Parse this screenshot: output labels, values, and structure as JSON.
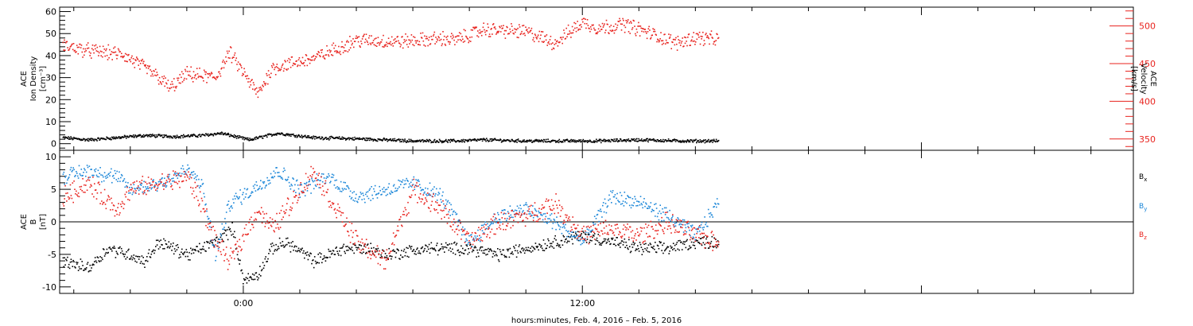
{
  "colors": {
    "axis": "#000000",
    "density": "#000000",
    "velocity": "#e8231e",
    "bx": "#000000",
    "by": "#1a86d8",
    "bz": "#e8231e"
  },
  "xaxis": {
    "label": "hours:minutes, Feb.  4, 2016 – Feb.  5, 2016",
    "range_hours": [
      -6.5,
      31.5
    ],
    "ticks": [
      {
        "value": 0,
        "label": "0:00"
      },
      {
        "value": 12,
        "label": "12:00"
      }
    ]
  },
  "chart_data": [
    {
      "type": "scatter",
      "panel": "top",
      "ylabel_left": [
        "ACE",
        "Ion Density",
        "[cm⁻³]"
      ],
      "ylabel_right": [
        "ACE",
        "Velocity",
        "[km/s]"
      ],
      "yaxis_left": {
        "range": [
          -3,
          62
        ],
        "ticks": [
          0,
          10,
          20,
          30,
          40,
          50,
          60
        ]
      },
      "yaxis_right": {
        "range": [
          335,
          525
        ],
        "ticks": [
          350,
          400,
          450,
          500
        ]
      },
      "series": [
        {
          "key": "density",
          "axis": "left",
          "noise": 0.6,
          "x": [
            -6.4,
            -5.5,
            -4.5,
            -3.5,
            -2.5,
            -1.5,
            -0.8,
            0.2,
            1.2,
            2.5,
            4,
            5,
            6,
            7.5,
            8.5,
            10,
            11.5,
            12.5,
            14,
            15.5,
            16.8
          ],
          "y": [
            3,
            2,
            3,
            4,
            3.5,
            4,
            5,
            2,
            5,
            3,
            2.5,
            2,
            1.5,
            1.5,
            2,
            1.5,
            1.5,
            1.5,
            2,
            1.5,
            1.5
          ]
        },
        {
          "key": "velocity",
          "axis": "right",
          "noise": 8,
          "x": [
            -6.4,
            -5.5,
            -4.3,
            -3.5,
            -3.0,
            -2.6,
            -2.0,
            -1.0,
            -0.5,
            0.5,
            1.0,
            2.5,
            4.0,
            5.5,
            7.0,
            7.5,
            8.5,
            10.0,
            11.0,
            12.0,
            12.5,
            13.5,
            14.3,
            15.3,
            16.0,
            16.8
          ],
          "y": [
            475,
            468,
            463,
            445,
            432,
            418,
            437,
            432,
            465,
            410,
            445,
            458,
            482,
            480,
            484,
            482,
            496,
            493,
            478,
            506,
            498,
            503,
            492,
            478,
            486,
            482
          ]
        }
      ]
    },
    {
      "type": "scatter",
      "panel": "bottom",
      "ylabel_left": [
        "ACE",
        "B",
        "[nT]"
      ],
      "yaxis_left": {
        "range": [
          -11,
          11
        ],
        "ticks": [
          -10,
          -5,
          0,
          5,
          10
        ]
      },
      "zero_line": true,
      "series": [
        {
          "key": "bx",
          "name": "B",
          "subscript": "x",
          "noise": 0.8,
          "x": [
            -6.4,
            -5.5,
            -4.8,
            -4.0,
            -3.5,
            -3.0,
            -2.0,
            -1.0,
            -0.4,
            0,
            0.5,
            1.0,
            1.5,
            2.5,
            3.5,
            4.5,
            5.0,
            6.5,
            8.0,
            9.0,
            10.0,
            11.0,
            12.0,
            13.0,
            14.0,
            15.0,
            16.0,
            16.8
          ],
          "y": [
            -6,
            -7,
            -4,
            -5,
            -6,
            -3,
            -5,
            -3,
            -1,
            -9,
            -8,
            -4,
            -3,
            -6,
            -4,
            -4,
            -5,
            -4,
            -4,
            -5,
            -4,
            -3,
            -2,
            -3,
            -4,
            -4,
            -3,
            -3
          ]
        },
        {
          "key": "by",
          "name": "B",
          "subscript": "y",
          "noise": 1.0,
          "x": [
            -6.4,
            -5.5,
            -4.5,
            -4.0,
            -3.0,
            -2.0,
            -1.5,
            -1.0,
            -0.5,
            0.3,
            1.2,
            2.0,
            3.0,
            4.0,
            5.0,
            6.0,
            7.0,
            8.0,
            9.0,
            10.0,
            11.0,
            12.0,
            13.0,
            14.0,
            15.0,
            16.0,
            16.8
          ],
          "y": [
            7,
            8,
            7,
            5,
            6,
            8,
            6,
            -5,
            3,
            5,
            8,
            5,
            7,
            4,
            5,
            6,
            4,
            -3,
            1,
            2,
            0,
            -3,
            4,
            3,
            1,
            -2,
            3
          ]
        },
        {
          "key": "bz",
          "name": "B",
          "subscript": "z",
          "noise": 1.3,
          "x": [
            -6.4,
            -5.5,
            -4.5,
            -4.0,
            -3.0,
            -2.0,
            -1.5,
            -1.0,
            -0.5,
            0.5,
            1.0,
            2.0,
            2.5,
            3.0,
            4.0,
            5.0,
            6.0,
            7.0,
            8.0,
            9.0,
            10.0,
            11.0,
            12.0,
            13.0,
            14.0,
            15.0,
            16.0,
            16.8
          ],
          "y": [
            4,
            6,
            2,
            5,
            6,
            7,
            3,
            -3,
            -6,
            2,
            -1,
            5,
            8,
            4,
            -3,
            -6,
            5,
            2,
            -3,
            0,
            1,
            3,
            -2,
            -1,
            -2,
            0,
            -2,
            -3
          ]
        }
      ]
    }
  ]
}
